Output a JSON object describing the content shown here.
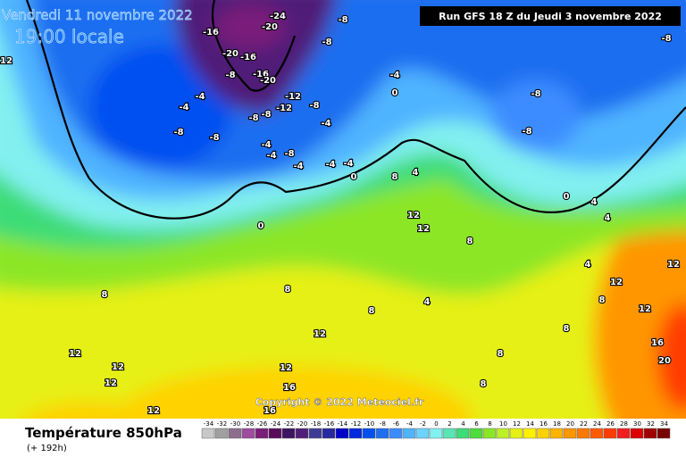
{
  "header": {
    "date": "Vendredi 11 novembre 2022",
    "time": "19:00 locale",
    "run": "Run GFS 18 Z du Jeudi 3 novembre 2022"
  },
  "copyright": "Copyright © 2022 Meteociel.fr",
  "footer": {
    "title": "Température 850hPa",
    "lead": "(+ 192h)"
  },
  "scale": {
    "values": [
      -34,
      -32,
      -30,
      -28,
      -26,
      -24,
      -22,
      -20,
      -18,
      -16,
      -14,
      -12,
      -10,
      -8,
      -6,
      -4,
      -2,
      0,
      2,
      4,
      6,
      8,
      10,
      12,
      14,
      16,
      18,
      20,
      22,
      24,
      26,
      28,
      30,
      32,
      34
    ],
    "colors": [
      "#c8c8c8",
      "#a0a0a0",
      "#8c6e8c",
      "#9e4c9e",
      "#7a1e7a",
      "#5a0a5a",
      "#3c1460",
      "#501e78",
      "#3c3c96",
      "#2828a0",
      "#0000c8",
      "#0028dc",
      "#0050f0",
      "#1e6ef0",
      "#3c8cff",
      "#50b4ff",
      "#6ed2ff",
      "#82f0f0",
      "#5ae6b4",
      "#3cdc78",
      "#50dc3c",
      "#8ce628",
      "#bef028",
      "#e6f014",
      "#fff000",
      "#ffd200",
      "#ffb400",
      "#ff9600",
      "#ff7800",
      "#ff5a00",
      "#ff3c00",
      "#f01e1e",
      "#dc0000",
      "#a00000",
      "#780000"
    ]
  },
  "map_labels": [
    "12",
    "-24",
    "-20",
    "-16",
    "-8",
    "-8",
    "-20",
    "-16",
    "-16",
    "-20",
    "-8",
    "-4",
    "-4",
    "-8",
    "-8",
    "-8",
    "-8",
    "-12",
    "-12",
    "-8",
    "-4",
    "-4",
    "-8",
    "-4",
    "-4",
    "-4",
    "-4",
    "0",
    "-4",
    "0",
    "-8",
    "-8",
    "-8",
    "0",
    "4",
    "4",
    "0",
    "8",
    "12",
    "12",
    "8",
    "4",
    "8",
    "8",
    "12",
    "12",
    "12",
    "8",
    "12",
    "12",
    "16",
    "16",
    "12",
    "8",
    "4",
    "8",
    "12",
    "16",
    "20",
    "12",
    "12",
    "8",
    "4",
    "8"
  ]
}
